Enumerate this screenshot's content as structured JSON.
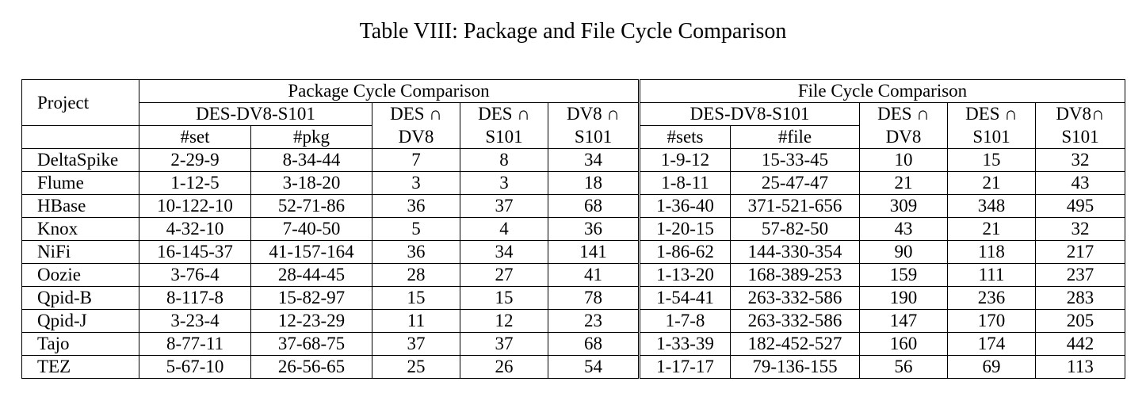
{
  "caption": "Table VIII: Package and File Cycle Comparison",
  "header": {
    "project": "Project",
    "package_group": "Package Cycle Comparison",
    "file_group": "File Cycle Comparison",
    "pkg": {
      "des_dv8_s101": "DES-DV8-S101",
      "set": "#set",
      "pkg": "#pkg",
      "des_dv8_line1": "DES ∩",
      "des_dv8_line2": "DV8",
      "des_s101_line1": "DES ∩",
      "des_s101_line2": "S101",
      "dv8_s101_line1": "DV8 ∩",
      "dv8_s101_line2": "S101"
    },
    "file": {
      "des_dv8_s101": "DES-DV8-S101",
      "sets": "#sets",
      "file": "#file",
      "des_dv8_line1": "DES ∩",
      "des_dv8_line2": "DV8",
      "des_s101_line1": "DES ∩",
      "des_s101_line2": "S101",
      "dv8_s101_line1": "DV8∩",
      "dv8_s101_line2": "S101"
    }
  },
  "rows": [
    {
      "project": "DeltaSpike",
      "pkg_set": "2-29-9",
      "pkg_pkg": "8-34-44",
      "pkg_des_dv8": "7",
      "pkg_des_s101": "8",
      "pkg_dv8_s101": "34",
      "file_sets": "1-9-12",
      "file_file": "15-33-45",
      "file_des_dv8": "10",
      "file_des_s101": "15",
      "file_dv8_s101": "32"
    },
    {
      "project": "Flume",
      "pkg_set": "1-12-5",
      "pkg_pkg": "3-18-20",
      "pkg_des_dv8": "3",
      "pkg_des_s101": "3",
      "pkg_dv8_s101": "18",
      "file_sets": "1-8-11",
      "file_file": "25-47-47",
      "file_des_dv8": "21",
      "file_des_s101": "21",
      "file_dv8_s101": "43"
    },
    {
      "project": "HBase",
      "pkg_set": "10-122-10",
      "pkg_pkg": "52-71-86",
      "pkg_des_dv8": "36",
      "pkg_des_s101": "37",
      "pkg_dv8_s101": "68",
      "file_sets": "1-36-40",
      "file_file": "371-521-656",
      "file_des_dv8": "309",
      "file_des_s101": "348",
      "file_dv8_s101": "495"
    },
    {
      "project": "Knox",
      "pkg_set": "4-32-10",
      "pkg_pkg": "7-40-50",
      "pkg_des_dv8": "5",
      "pkg_des_s101": "4",
      "pkg_dv8_s101": "36",
      "file_sets": "1-20-15",
      "file_file": "57-82-50",
      "file_des_dv8": "43",
      "file_des_s101": "21",
      "file_dv8_s101": "32"
    },
    {
      "project": "NiFi",
      "pkg_set": "16-145-37",
      "pkg_pkg": "41-157-164",
      "pkg_des_dv8": "36",
      "pkg_des_s101": "34",
      "pkg_dv8_s101": "141",
      "file_sets": "1-86-62",
      "file_file": "144-330-354",
      "file_des_dv8": "90",
      "file_des_s101": "118",
      "file_dv8_s101": "217"
    },
    {
      "project": "Oozie",
      "pkg_set": "3-76-4",
      "pkg_pkg": "28-44-45",
      "pkg_des_dv8": "28",
      "pkg_des_s101": "27",
      "pkg_dv8_s101": "41",
      "file_sets": "1-13-20",
      "file_file": "168-389-253",
      "file_des_dv8": "159",
      "file_des_s101": "111",
      "file_dv8_s101": "237"
    },
    {
      "project": "Qpid-B",
      "pkg_set": "8-117-8",
      "pkg_pkg": "15-82-97",
      "pkg_des_dv8": "15",
      "pkg_des_s101": "15",
      "pkg_dv8_s101": "78",
      "file_sets": "1-54-41",
      "file_file": "263-332-586",
      "file_des_dv8": "190",
      "file_des_s101": "236",
      "file_dv8_s101": "283"
    },
    {
      "project": "Qpid-J",
      "pkg_set": "3-23-4",
      "pkg_pkg": "12-23-29",
      "pkg_des_dv8": "11",
      "pkg_des_s101": "12",
      "pkg_dv8_s101": "23",
      "file_sets": "1-7-8",
      "file_file": "263-332-586",
      "file_des_dv8": "147",
      "file_des_s101": "170",
      "file_dv8_s101": "205"
    },
    {
      "project": "Tajo",
      "pkg_set": "8-77-11",
      "pkg_pkg": "37-68-75",
      "pkg_des_dv8": "37",
      "pkg_des_s101": "37",
      "pkg_dv8_s101": "68",
      "file_sets": "1-33-39",
      "file_file": "182-452-527",
      "file_des_dv8": "160",
      "file_des_s101": "174",
      "file_dv8_s101": "442"
    },
    {
      "project": "TEZ",
      "pkg_set": "5-67-10",
      "pkg_pkg": "26-56-65",
      "pkg_des_dv8": "25",
      "pkg_des_s101": "26",
      "pkg_dv8_s101": "54",
      "file_sets": "1-17-17",
      "file_file": "79-136-155",
      "file_des_dv8": "56",
      "file_des_s101": "69",
      "file_dv8_s101": "113"
    }
  ]
}
